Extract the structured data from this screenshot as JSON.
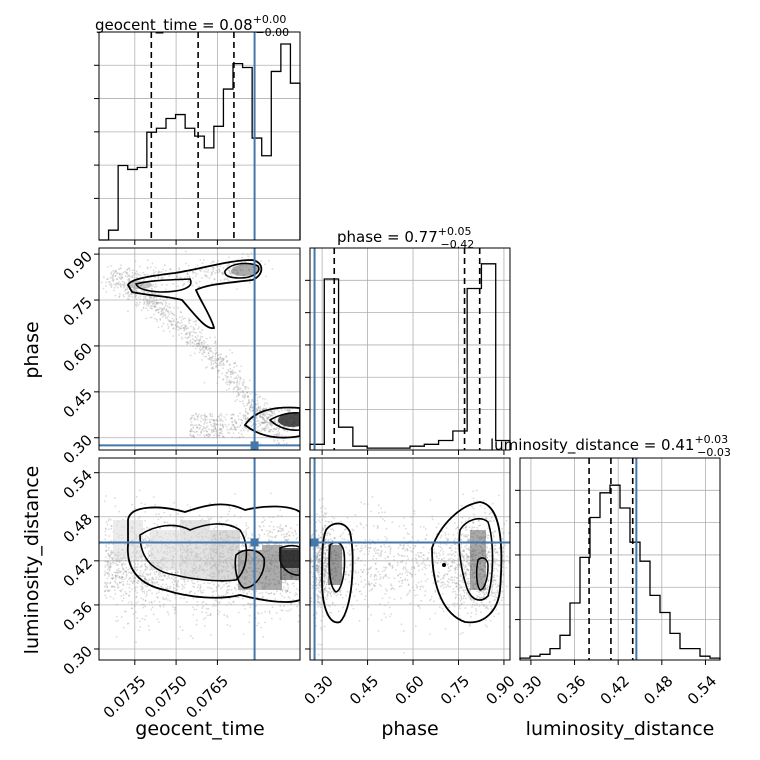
{
  "colors": {
    "truth": "#4477aa",
    "line": "#000000",
    "grid": "#b0b0b0",
    "scatter": "#999999"
  },
  "chart_data": {
    "type": "corner",
    "parameters": [
      {
        "name": "geocent_time",
        "truth": 0.07785,
        "range": [
          0.0722,
          0.0795
        ],
        "ticks": [
          "0.0735",
          "0.0750",
          "0.0765"
        ],
        "tick_values": [
          0.0735,
          0.075,
          0.0765
        ],
        "title": {
          "base": "geocent_time = 0.08",
          "plus": "+0.00",
          "minus": "−0.00"
        },
        "quantiles": [
          0.0741,
          0.0758,
          0.0771
        ]
      },
      {
        "name": "phase",
        "truth": 0.275,
        "range": [
          0.26,
          0.92
        ],
        "ticks": [
          "0.30",
          "0.45",
          "0.60",
          "0.75",
          "0.90"
        ],
        "tick_values": [
          0.3,
          0.45,
          0.6,
          0.75,
          0.9
        ],
        "title": {
          "base": "phase = 0.77",
          "plus": "+0.05",
          "minus": "−0.42"
        },
        "quantiles": [
          0.34,
          0.77,
          0.82
        ]
      },
      {
        "name": "luminosity_distance",
        "truth": 0.445,
        "range": [
          0.285,
          0.56
        ],
        "ticks": [
          "0.30",
          "0.36",
          "0.42",
          "0.48",
          "0.54"
        ],
        "tick_values": [
          0.3,
          0.36,
          0.42,
          0.48,
          0.54
        ],
        "title": {
          "base": "luminosity_distance = 0.41",
          "plus": "+0.03",
          "minus": "−0.03"
        },
        "quantiles": [
          0.38,
          0.41,
          0.44
        ]
      }
    ],
    "histograms": [
      {
        "param": "geocent_time",
        "edges": [
          0.0722,
          0.07269,
          0.07318,
          0.07367,
          0.07416,
          0.07465,
          0.07514,
          0.07563,
          0.07612,
          0.07661,
          0.0771,
          0.07759,
          0.07808,
          0.07857
        ],
        "counts": [
          0.05,
          0.4,
          0.37,
          0.42,
          0.56,
          0.63,
          0.46,
          0.8,
          0.92,
          0.43,
          0.82,
          1.0,
          0.8
        ],
        "steps": [
          0,
          0.05,
          0.38,
          0.36,
          0.37,
          0.55,
          0.57,
          0.62,
          0.64,
          0.57,
          0.53,
          0.47,
          0.58,
          0.77,
          0.9,
          0.88,
          0.52,
          0.43,
          0.86,
          1.0,
          0.8
        ]
      },
      {
        "param": "phase",
        "counts": [
          0.03,
          0.9,
          0.12,
          0.02,
          0.01,
          0.01,
          0.01,
          0.02,
          0.03,
          0.05,
          0.1,
          0.85,
          0.98,
          0.05
        ]
      },
      {
        "param": "luminosity_distance",
        "counts": [
          0.01,
          0.02,
          0.03,
          0.06,
          0.13,
          0.3,
          0.54,
          0.75,
          0.88,
          0.92,
          0.8,
          0.62,
          0.52,
          0.34,
          0.25,
          0.14,
          0.06,
          0.06,
          0.02,
          0.01
        ]
      }
    ],
    "pairs": [
      {
        "x": "geocent_time",
        "y": "phase"
      },
      {
        "x": "geocent_time",
        "y": "luminosity_distance"
      },
      {
        "x": "phase",
        "y": "luminosity_distance"
      }
    ]
  }
}
